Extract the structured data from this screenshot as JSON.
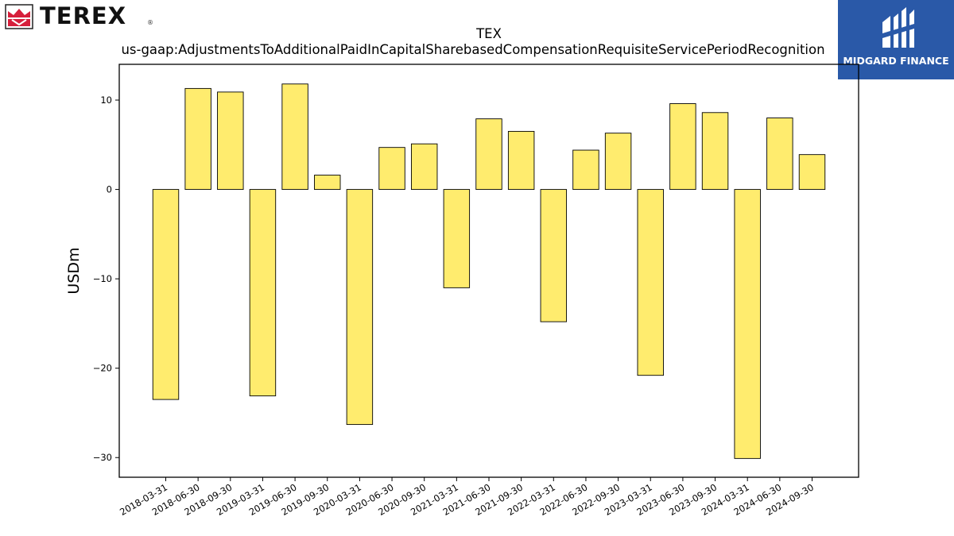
{
  "brand": {
    "name": "TEREX",
    "reg_mark": "®"
  },
  "badge": {
    "text": "MIDGARD FINANCE"
  },
  "colors": {
    "bar_fill": "#ffec6e",
    "bar_edge": "#000000",
    "badge_bg": "#2a59a8",
    "logo_red": "#d61f3b"
  },
  "chart_data": {
    "type": "bar",
    "title": "TEX",
    "subtitle": "us-gaap:AdjustmentsToAdditionalPaidInCapitalSharebasedCompensationRequisiteServicePeriodRecognition",
    "xlabel": "",
    "ylabel": "USDm",
    "ylim": [
      -32.2,
      14
    ],
    "yticks": [
      10,
      0,
      -10,
      -20,
      -30
    ],
    "ytick_labels": [
      "10",
      "0",
      "−10",
      "−20",
      "−30"
    ],
    "grid": false,
    "categories": [
      "2018-03-31",
      "2018-06-30",
      "2018-09-30",
      "2019-03-31",
      "2019-06-30",
      "2019-09-30",
      "2020-03-31",
      "2020-06-30",
      "2020-09-30",
      "2021-03-31",
      "2021-06-30",
      "2021-09-30",
      "2022-03-31",
      "2022-06-30",
      "2022-09-30",
      "2023-03-31",
      "2023-06-30",
      "2023-09-30",
      "2024-03-31",
      "2024-06-30",
      "2024-09-30"
    ],
    "values": [
      -23.5,
      11.3,
      10.9,
      -23.1,
      11.8,
      1.6,
      -26.3,
      4.7,
      5.1,
      -11.0,
      7.9,
      6.5,
      -14.8,
      4.4,
      6.3,
      -20.8,
      9.6,
      8.6,
      -30.1,
      8.0,
      3.9
    ]
  }
}
